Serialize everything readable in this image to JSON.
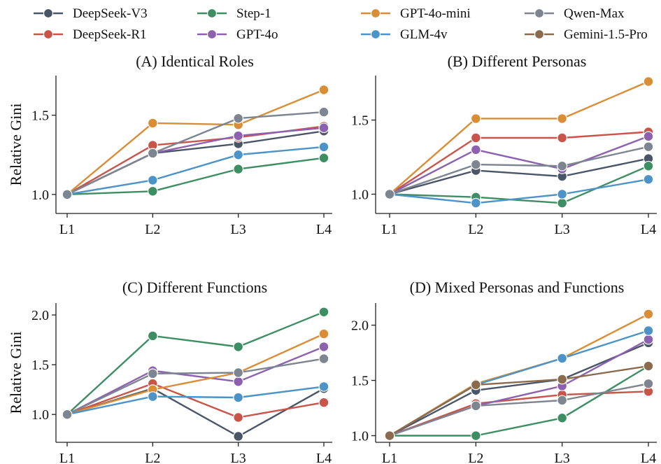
{
  "colors": {
    "DeepSeek-V3": "#4a5568",
    "DeepSeek-R1": "#c8544a",
    "Step-1": "#3e8e64",
    "GPT-4o": "#8c62b0",
    "GPT-4o-mini": "#d98e36",
    "GLM-4v": "#4c93c7",
    "Qwen-Max": "#7d8590",
    "Gemini-1.5-Pro": "#8b6a4d"
  },
  "legend": {
    "items": [
      "DeepSeek-V3",
      "DeepSeek-R1",
      "Step-1",
      "GPT-4o",
      "GPT-4o-mini",
      "GLM-4v",
      "Qwen-Max",
      "Gemini-1.5-Pro"
    ]
  },
  "chart_data": [
    {
      "type": "line",
      "title": "(A) Identical Roles",
      "ylabel": "Relative Gini",
      "xlabel": "",
      "categories": [
        "L1",
        "L2",
        "L3",
        "L4"
      ],
      "ylim": [
        0.88,
        1.75
      ],
      "yticks": [
        1.0,
        1.5
      ],
      "ytick_labels": [
        "1.0",
        "1.5"
      ],
      "series": [
        {
          "name": "DeepSeek-V3",
          "values": [
            1.0,
            1.26,
            1.32,
            1.4
          ]
        },
        {
          "name": "DeepSeek-R1",
          "values": [
            1.0,
            1.31,
            1.36,
            1.43
          ]
        },
        {
          "name": "Step-1",
          "values": [
            1.0,
            1.02,
            1.16,
            1.23
          ]
        },
        {
          "name": "GPT-4o",
          "values": [
            1.0,
            1.26,
            1.37,
            1.42
          ]
        },
        {
          "name": "GPT-4o-mini",
          "values": [
            1.0,
            1.45,
            1.44,
            1.66
          ]
        },
        {
          "name": "GLM-4v",
          "values": [
            1.0,
            1.09,
            1.25,
            1.3
          ]
        },
        {
          "name": "Qwen-Max",
          "values": [
            1.0,
            1.26,
            1.48,
            1.52
          ]
        }
      ]
    },
    {
      "type": "line",
      "title": "(B) Different Personas",
      "ylabel": "",
      "xlabel": "",
      "categories": [
        "L1",
        "L2",
        "L3",
        "L4"
      ],
      "ylim": [
        0.87,
        1.8
      ],
      "yticks": [
        1.0,
        1.5
      ],
      "ytick_labels": [
        "1.0",
        "1.5"
      ],
      "series": [
        {
          "name": "DeepSeek-V3",
          "values": [
            1.0,
            1.16,
            1.12,
            1.24
          ]
        },
        {
          "name": "DeepSeek-R1",
          "values": [
            1.0,
            1.38,
            1.38,
            1.42
          ]
        },
        {
          "name": "Step-1",
          "values": [
            1.0,
            0.98,
            0.94,
            1.19
          ]
        },
        {
          "name": "GPT-4o",
          "values": [
            1.0,
            1.3,
            1.17,
            1.39
          ]
        },
        {
          "name": "GPT-4o-mini",
          "values": [
            1.0,
            1.51,
            1.51,
            1.76
          ]
        },
        {
          "name": "GLM-4v",
          "values": [
            1.0,
            0.94,
            1.0,
            1.1
          ]
        },
        {
          "name": "Qwen-Max",
          "values": [
            1.0,
            1.2,
            1.19,
            1.32
          ]
        }
      ]
    },
    {
      "type": "line",
      "title": "(C) Different Functions",
      "ylabel": "Relative Gini",
      "xlabel": "",
      "categories": [
        "L1",
        "L2",
        "L3",
        "L4"
      ],
      "ylim": [
        0.72,
        2.12
      ],
      "yticks": [
        1.0,
        1.5,
        2.0
      ],
      "ytick_labels": [
        "1.0",
        "1.5",
        "2.0"
      ],
      "series": [
        {
          "name": "DeepSeek-V3",
          "values": [
            1.0,
            1.26,
            0.78,
            1.26
          ]
        },
        {
          "name": "DeepSeek-R1",
          "values": [
            1.0,
            1.31,
            0.97,
            1.12
          ]
        },
        {
          "name": "Step-1",
          "values": [
            1.0,
            1.79,
            1.68,
            2.03
          ]
        },
        {
          "name": "GPT-4o",
          "values": [
            1.0,
            1.44,
            1.33,
            1.68
          ]
        },
        {
          "name": "GPT-4o-mini",
          "values": [
            1.0,
            1.25,
            1.42,
            1.81
          ]
        },
        {
          "name": "GLM-4v",
          "values": [
            1.0,
            1.18,
            1.17,
            1.28
          ]
        },
        {
          "name": "Qwen-Max",
          "values": [
            1.0,
            1.41,
            1.42,
            1.56
          ]
        }
      ]
    },
    {
      "type": "line",
      "title": "(D) Mixed Personas and Functions",
      "ylabel": "",
      "xlabel": "",
      "categories": [
        "L1",
        "L2",
        "L3",
        "L4"
      ],
      "ylim": [
        0.94,
        2.2
      ],
      "yticks": [
        1.0,
        1.5,
        2.0
      ],
      "ytick_labels": [
        "1.0",
        "1.5",
        "2.0"
      ],
      "series": [
        {
          "name": "DeepSeek-V3",
          "values": [
            1.0,
            1.41,
            1.51,
            1.84
          ]
        },
        {
          "name": "DeepSeek-R1",
          "values": [
            1.0,
            1.29,
            1.37,
            1.4
          ]
        },
        {
          "name": "Step-1",
          "values": [
            1.0,
            1.0,
            1.16,
            1.63
          ]
        },
        {
          "name": "GPT-4o",
          "values": [
            1.0,
            1.27,
            1.45,
            1.87
          ]
        },
        {
          "name": "GPT-4o-mini",
          "values": [
            1.0,
            1.47,
            1.7,
            2.1
          ]
        },
        {
          "name": "GLM-4v",
          "values": [
            1.0,
            1.46,
            1.7,
            1.95
          ]
        },
        {
          "name": "Qwen-Max",
          "values": [
            1.0,
            1.27,
            1.32,
            1.47
          ]
        },
        {
          "name": "Gemini-1.5-Pro",
          "values": [
            1.0,
            1.46,
            1.51,
            1.63
          ]
        }
      ]
    }
  ]
}
